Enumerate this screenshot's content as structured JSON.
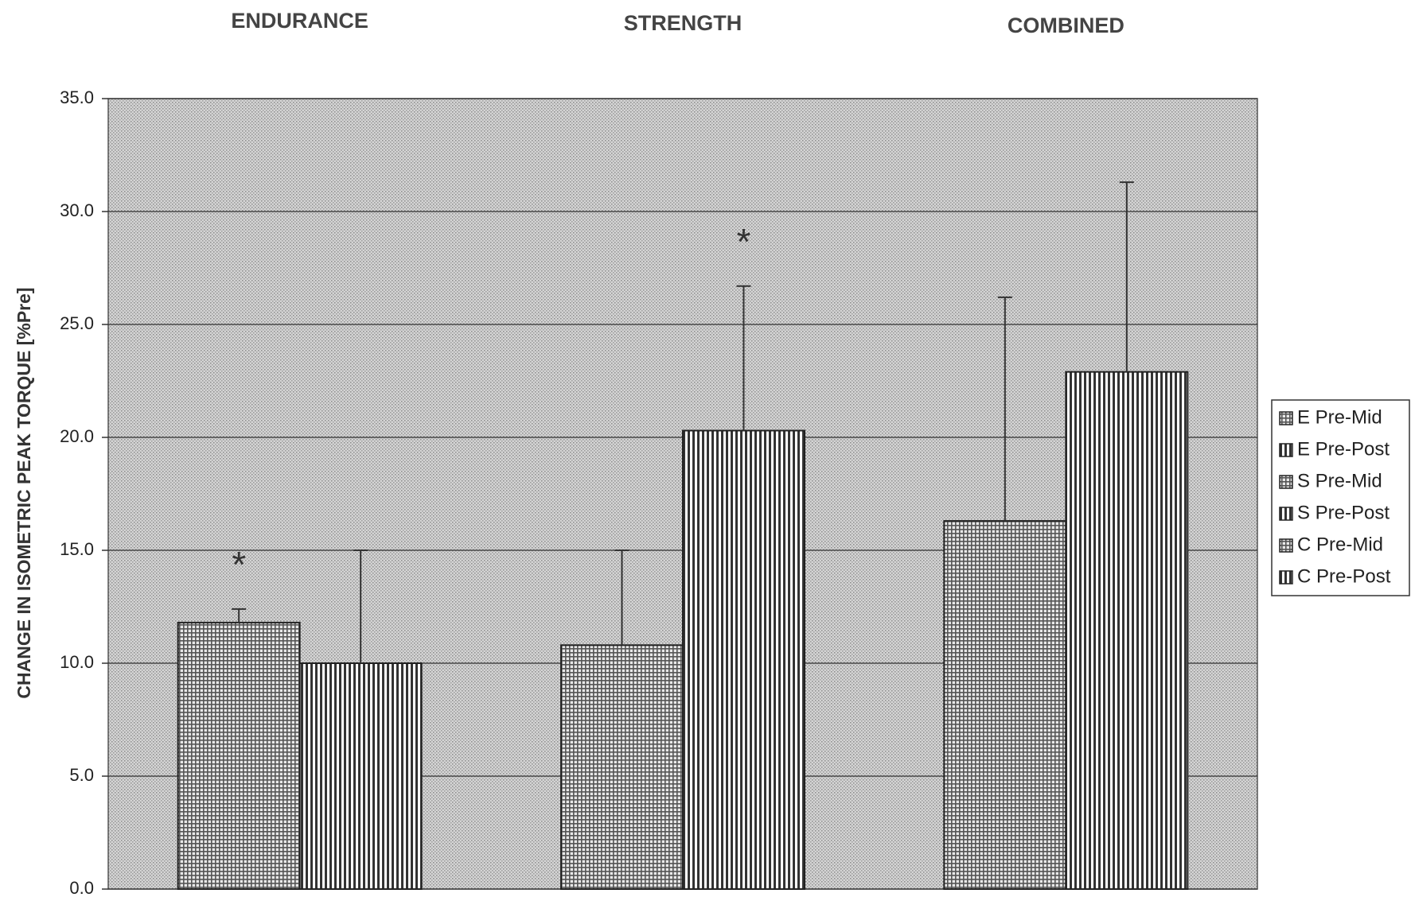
{
  "chart_data": {
    "type": "bar",
    "y_label": "CHANGE IN ISOMETRIC PEAK TORQUE [%Pre]",
    "categories": [
      "ENDURANCE",
      "STRENGTH",
      "COMBINED"
    ],
    "series": [
      {
        "name": "E Pre-Mid",
        "color": "#555555",
        "pattern": "grid",
        "values": [
          11.8,
          null,
          null
        ],
        "errors": [
          0.6,
          null,
          null
        ],
        "annotation": "*"
      },
      {
        "name": "E Pre-Post",
        "color": "#333333",
        "pattern": "vertical",
        "values": [
          10.0,
          null,
          null
        ],
        "errors": [
          5.0,
          null,
          null
        ]
      },
      {
        "name": "S Pre-Mid",
        "color": "#555555",
        "pattern": "grid",
        "values": [
          null,
          10.8,
          null
        ],
        "errors": [
          null,
          4.2,
          null
        ]
      },
      {
        "name": "S Pre-Post",
        "color": "#333333",
        "pattern": "vertical",
        "values": [
          null,
          20.3,
          null
        ],
        "errors": [
          null,
          6.4,
          null
        ],
        "annotation": "*"
      },
      {
        "name": "C Pre-Mid",
        "color": "#555555",
        "pattern": "grid",
        "values": [
          null,
          null,
          16.3
        ],
        "errors": [
          null,
          null,
          9.9
        ]
      },
      {
        "name": "C Pre-Post",
        "color": "#333333",
        "pattern": "vertical",
        "values": [
          null,
          null,
          22.9
        ],
        "errors": [
          null,
          null,
          8.4
        ]
      }
    ],
    "ylim": [
      0,
      35
    ],
    "yticks": [
      {
        "value": 0,
        "label": "0.0"
      },
      {
        "value": 5,
        "label": "5.0"
      },
      {
        "value": 10,
        "label": "10.0"
      },
      {
        "value": 15,
        "label": "15.0"
      },
      {
        "value": 20,
        "label": "20.0"
      },
      {
        "value": 25,
        "label": "25.0"
      },
      {
        "value": 30,
        "label": "30.0"
      },
      {
        "value": 35,
        "label": "35.0"
      }
    ],
    "grid": true,
    "legend": "right"
  }
}
